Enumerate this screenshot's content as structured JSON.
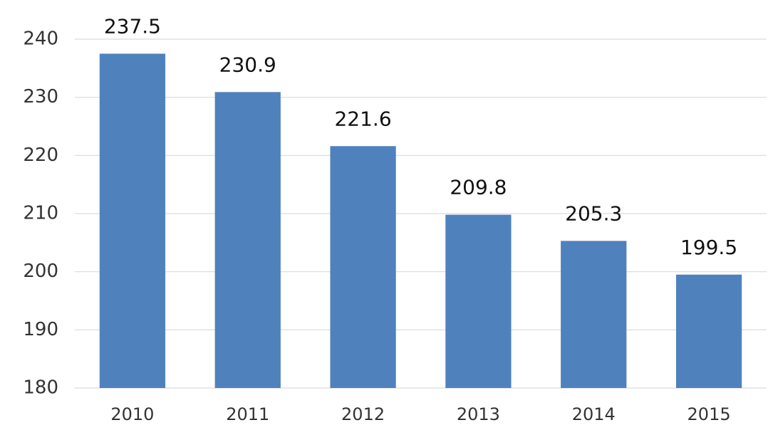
{
  "chart_data": {
    "type": "bar",
    "categories": [
      "2010",
      "2011",
      "2012",
      "2013",
      "2014",
      "2015"
    ],
    "values": [
      237.5,
      230.9,
      221.6,
      209.8,
      205.3,
      199.5
    ],
    "color": "#4f81bd",
    "ylim": [
      180,
      240
    ],
    "yticks": [
      180,
      190,
      200,
      210,
      220,
      230,
      240
    ],
    "grid": true
  }
}
